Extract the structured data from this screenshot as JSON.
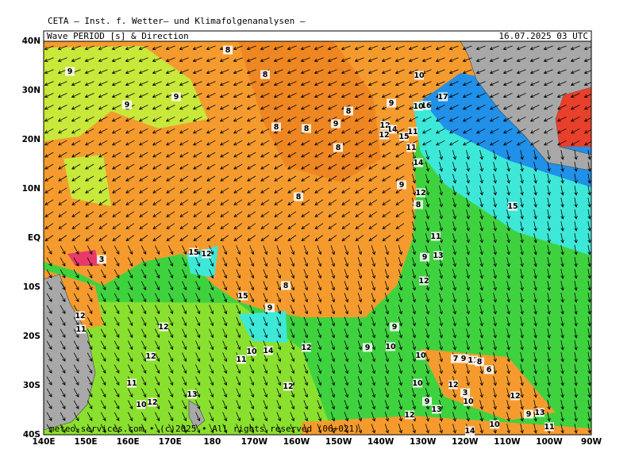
{
  "header": {
    "institute": "CETA — Inst. f. Wetter— und Klimafolgenanalysen —",
    "title": "Wave PERIOD [s] & Direction",
    "datetime": "16.07.2025 03 UTC"
  },
  "axes": {
    "latitude_labels": [
      "40N",
      "30N",
      "20N",
      "10N",
      "EQ",
      "10S",
      "20S",
      "30S",
      "40S"
    ],
    "longitude_labels": [
      "140E",
      "150E",
      "160E",
      "170E",
      "180",
      "170W",
      "160W",
      "150W",
      "140W",
      "130W",
      "120W",
      "110W",
      "100W",
      "90W"
    ]
  },
  "map_labels": [
    "8",
    "9",
    "8",
    "9",
    "9",
    "10",
    "17",
    "16",
    "10",
    "9",
    "8",
    "8",
    "9",
    "8",
    "12",
    "14",
    "11",
    "15",
    "12",
    "8",
    "11",
    "14",
    "9",
    "12",
    "8",
    "8",
    "15",
    "11",
    "9",
    "13",
    "3",
    "15",
    "12",
    "12",
    "8",
    "15",
    "9",
    "12",
    "11",
    "12",
    "9",
    "9",
    "10",
    "14",
    "10",
    "12",
    "11",
    "12",
    "10",
    "7",
    "9",
    "11",
    "8",
    "6",
    "10",
    "12",
    "12",
    "11",
    "13",
    "3",
    "12",
    "10",
    "9",
    "10",
    "12",
    "13",
    "12",
    "9",
    "13",
    "10",
    "11",
    "14"
  ],
  "footer": "meteo-services.com • (c)2025 • All rights reserved (06+021)"
}
